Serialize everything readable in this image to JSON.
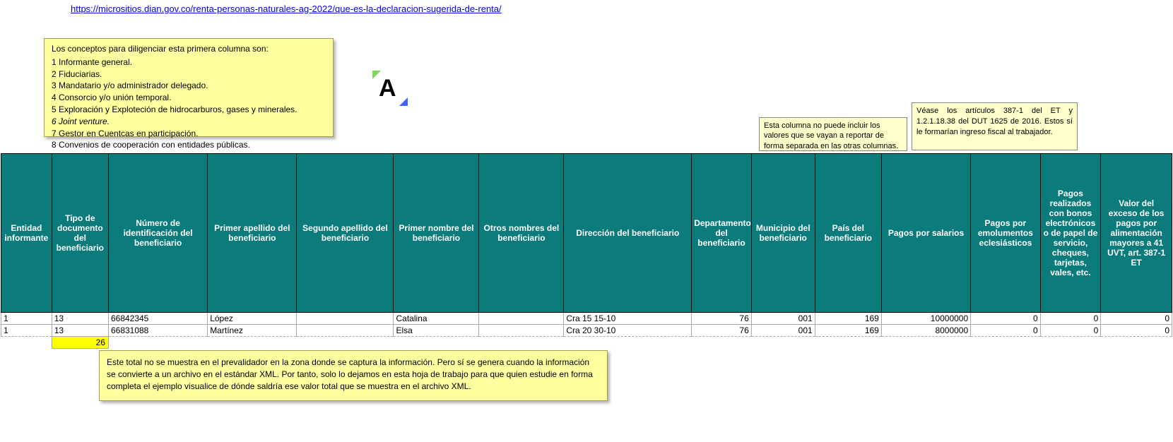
{
  "link": {
    "text": "https://micrositios.dian.gov.co/renta-personas-naturales-ag-2022/que-es-la-declaracion-sugerida-de-renta/",
    "href": "https://micrositios.dian.gov.co/renta-personas-naturales-ag-2022/que-es-la-declaracion-sugerida-de-renta/"
  },
  "conceptos": {
    "title": "Los conceptos para diligenciar esta primera columna son:",
    "items": [
      "1  Informante general.",
      "2  Fiduciarias.",
      "3  Mandatario y/o administrador delegado.",
      "4  Consorcio y/o unión temporal.",
      "5  Exploración y Exploteción de hidrocarburos, gases y minerales.",
      "6  Joint venture.",
      "7  Gestor en Cuentcas en participación.",
      "8  Convenios de cooperación con entidades públicas."
    ],
    "italic_index": 5
  },
  "note_columna": "Esta columna no puede incluir los valores que se vayan a reportar de forma separada en las otras columnas.",
  "note_articulos": "Véase los artículos 387-1 del ET y 1.2.1.18.38 del DUT 1625 de 2016. Estos sí le formarían ingreso fiscal al trabajador.",
  "note_total": "Este total no se muestra en el prevalidador en la zona donde se captura la información. Pero sí se genera cuando la información se convierte a un archivo en el estándar XML. Por tanto, solo lo dejamos en esta hoja de trabajo para que quien estudie en forma completa el ejemplo visualice de dónde saldría ese valor total que se muestra en el archivo XML.",
  "table": {
    "header_bg": "#0b7b7b",
    "header_fg": "#ffffff",
    "columns": [
      {
        "label": "Entidad informante",
        "class": "col-entidad",
        "align": "left"
      },
      {
        "label": "Tipo de documento del beneficiario",
        "class": "col-tipodoc",
        "align": "left"
      },
      {
        "label": "Número de identificación del beneficiario",
        "class": "col-numero",
        "align": "left"
      },
      {
        "label": "Primer apellido del beneficiario",
        "class": "col-apellido1",
        "align": "left"
      },
      {
        "label": "Segundo apellido del beneficiario",
        "class": "col-apellido2",
        "align": "left"
      },
      {
        "label": "Primer nombre del beneficiario",
        "class": "col-nombre1",
        "align": "left"
      },
      {
        "label": "Otros nombres del beneficiario",
        "class": "col-nombre2",
        "align": "left"
      },
      {
        "label": "Dirección del beneficiario",
        "class": "col-direccion",
        "align": "left"
      },
      {
        "label": "Departamento del beneficiario",
        "class": "col-depto",
        "align": "right"
      },
      {
        "label": "Municipio del beneficiario",
        "class": "col-municipio",
        "align": "right"
      },
      {
        "label": "País del beneficiario",
        "class": "col-pais",
        "align": "right"
      },
      {
        "label": "Pagos por salarios",
        "class": "col-salarios",
        "align": "right"
      },
      {
        "label": "Pagos por emolumentos eclesiásticos",
        "class": "col-emolumentos",
        "align": "right"
      },
      {
        "label": "Pagos realizados con bonos electrónicos o de papel de servicio, cheques, tarjetas, vales, etc.",
        "class": "col-bonos",
        "align": "right"
      },
      {
        "label": "Valor del exceso de los pagos por alimentación mayores a 41 UVT, art. 387-1 ET",
        "class": "col-exceso",
        "align": "right"
      }
    ],
    "rows": [
      [
        "1",
        "13",
        "66842345",
        "López",
        "",
        "Catalina",
        "",
        "Cra 15 15-10",
        "76",
        "001",
        "169",
        "10000000",
        "0",
        "0",
        "0"
      ],
      [
        "1",
        "13",
        "66831088",
        "Martínez",
        "",
        "Elsa",
        "",
        "Cra 20 30-10",
        "76",
        "001",
        "169",
        "8000000",
        "0",
        "0",
        "0"
      ]
    ],
    "total_row": {
      "value": "26",
      "col_index": 1,
      "highlight": "#ffff00"
    }
  },
  "logo": {
    "letter": "A",
    "accent_top": "#7fd858",
    "accent_bottom": "#4060ff"
  }
}
